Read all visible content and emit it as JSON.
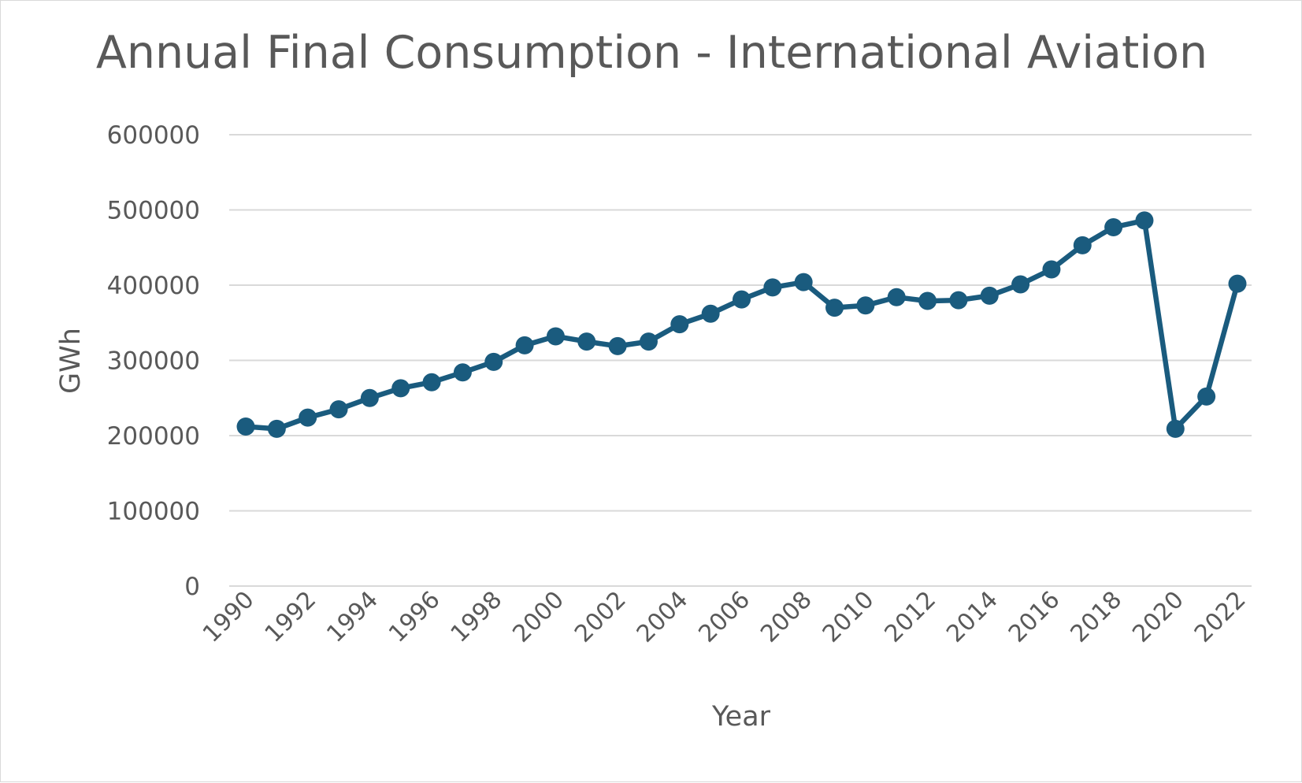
{
  "chart_data": {
    "type": "line",
    "title": "Annual Final Consumption - International Aviation",
    "xlabel": "Year",
    "ylabel": "GWh",
    "ylim": [
      0,
      600000
    ],
    "yticks": [
      "0",
      "100000",
      "200000",
      "300000",
      "400000",
      "500000",
      "600000"
    ],
    "xticks": [
      "1990",
      "1992",
      "1994",
      "1996",
      "1998",
      "2000",
      "2002",
      "2004",
      "2006",
      "2008",
      "2010",
      "2012",
      "2014",
      "2016",
      "2018",
      "2020",
      "2022"
    ],
    "grid": true,
    "legend": "none",
    "color": "#1a5b7e",
    "x": [
      1990,
      1991,
      1992,
      1993,
      1994,
      1995,
      1996,
      1997,
      1998,
      1999,
      2000,
      2001,
      2002,
      2003,
      2004,
      2005,
      2006,
      2007,
      2008,
      2009,
      2010,
      2011,
      2012,
      2013,
      2014,
      2015,
      2016,
      2017,
      2018,
      2019,
      2020,
      2021,
      2022
    ],
    "series": [
      {
        "values": [
          212000,
          209000,
          224000,
          235000,
          250000,
          263000,
          271000,
          284000,
          298000,
          320000,
          332000,
          325000,
          319000,
          325000,
          348000,
          362000,
          381000,
          397000,
          404000,
          370000,
          373000,
          384000,
          379000,
          380000,
          386000,
          401000,
          421000,
          453000,
          477000,
          486000,
          209000,
          252000,
          402000
        ]
      }
    ]
  }
}
